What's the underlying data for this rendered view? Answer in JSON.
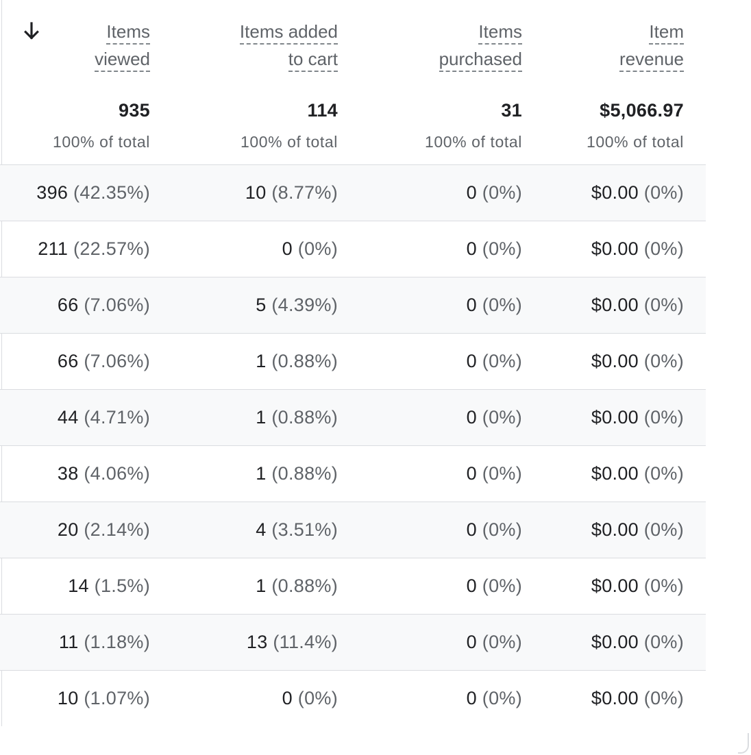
{
  "header": {
    "sort_icon": "arrow-downward-icon",
    "columns": [
      {
        "line1": "Items",
        "line2": "viewed"
      },
      {
        "line1": "Items added",
        "line2": "to cart"
      },
      {
        "line1": "Items",
        "line2": "purchased"
      },
      {
        "line1": "Item",
        "line2": "revenue"
      }
    ]
  },
  "totals": [
    {
      "value": "935",
      "sub": "100% of total"
    },
    {
      "value": "114",
      "sub": "100% of total"
    },
    {
      "value": "31",
      "sub": "100% of total"
    },
    {
      "value": "$5,066.97",
      "sub": "100% of total"
    }
  ],
  "rows": [
    [
      {
        "num": "396",
        "pct": "(42.35%)"
      },
      {
        "num": "10",
        "pct": "(8.77%)"
      },
      {
        "num": "0",
        "pct": "(0%)"
      },
      {
        "num": "$0.00",
        "pct": "(0%)"
      }
    ],
    [
      {
        "num": "211",
        "pct": "(22.57%)"
      },
      {
        "num": "0",
        "pct": "(0%)"
      },
      {
        "num": "0",
        "pct": "(0%)"
      },
      {
        "num": "$0.00",
        "pct": "(0%)"
      }
    ],
    [
      {
        "num": "66",
        "pct": "(7.06%)"
      },
      {
        "num": "5",
        "pct": "(4.39%)"
      },
      {
        "num": "0",
        "pct": "(0%)"
      },
      {
        "num": "$0.00",
        "pct": "(0%)"
      }
    ],
    [
      {
        "num": "66",
        "pct": "(7.06%)"
      },
      {
        "num": "1",
        "pct": "(0.88%)"
      },
      {
        "num": "0",
        "pct": "(0%)"
      },
      {
        "num": "$0.00",
        "pct": "(0%)"
      }
    ],
    [
      {
        "num": "44",
        "pct": "(4.71%)"
      },
      {
        "num": "1",
        "pct": "(0.88%)"
      },
      {
        "num": "0",
        "pct": "(0%)"
      },
      {
        "num": "$0.00",
        "pct": "(0%)"
      }
    ],
    [
      {
        "num": "38",
        "pct": "(4.06%)"
      },
      {
        "num": "1",
        "pct": "(0.88%)"
      },
      {
        "num": "0",
        "pct": "(0%)"
      },
      {
        "num": "$0.00",
        "pct": "(0%)"
      }
    ],
    [
      {
        "num": "20",
        "pct": "(2.14%)"
      },
      {
        "num": "4",
        "pct": "(3.51%)"
      },
      {
        "num": "0",
        "pct": "(0%)"
      },
      {
        "num": "$0.00",
        "pct": "(0%)"
      }
    ],
    [
      {
        "num": "14",
        "pct": "(1.5%)"
      },
      {
        "num": "1",
        "pct": "(0.88%)"
      },
      {
        "num": "0",
        "pct": "(0%)"
      },
      {
        "num": "$0.00",
        "pct": "(0%)"
      }
    ],
    [
      {
        "num": "11",
        "pct": "(1.18%)"
      },
      {
        "num": "13",
        "pct": "(11.4%)"
      },
      {
        "num": "0",
        "pct": "(0%)"
      },
      {
        "num": "$0.00",
        "pct": "(0%)"
      }
    ],
    [
      {
        "num": "10",
        "pct": "(1.07%)"
      },
      {
        "num": "0",
        "pct": "(0%)"
      },
      {
        "num": "0",
        "pct": "(0%)"
      },
      {
        "num": "$0.00",
        "pct": "(0%)"
      }
    ]
  ],
  "colors": {
    "text_primary": "#202124",
    "text_secondary": "#5f6368",
    "row_shade": "#f8f9fa",
    "divider": "#dadce0"
  }
}
